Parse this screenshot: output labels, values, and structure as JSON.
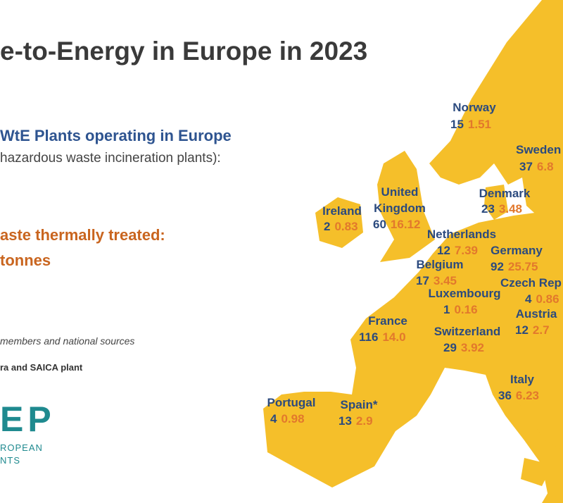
{
  "header": {
    "title": "e-to-Energy in Europe in 2023",
    "plants_heading": "WtE Plants operating in Europe",
    "plants_note": "hazardous waste incineration plants):",
    "waste_heading": "aste thermally treated:",
    "waste_unit": "tonnes",
    "source": "members and national sources",
    "footnote": "ra and SAICA plant"
  },
  "logo": {
    "mark": "EP",
    "line1": "ROPEAN",
    "line2": "NTS"
  },
  "countries": [
    {
      "name": "Norway",
      "plants": 15,
      "tonnes": 1.51
    },
    {
      "name": "Sweden",
      "plants": 37,
      "tonnes": 6.8
    },
    {
      "name": "Denmark",
      "plants": 23,
      "tonnes": 3.48
    },
    {
      "name": "Ireland",
      "plants": 2,
      "tonnes": 0.83
    },
    {
      "name": [
        "United",
        "Kingdom"
      ],
      "plants": 60,
      "tonnes": 16.12
    },
    {
      "name": "Netherlands",
      "plants": 12,
      "tonnes": 7.39
    },
    {
      "name": "Germany",
      "plants": 92,
      "tonnes": 25.75
    },
    {
      "name": "Belgium",
      "plants": 17,
      "tonnes": 3.45
    },
    {
      "name": "Czech Rep",
      "plants": 4,
      "tonnes": 0.86
    },
    {
      "name": "Luxembourg",
      "plants": 1,
      "tonnes": 0.16
    },
    {
      "name": "Austria",
      "plants": 12,
      "tonnes": 2.7
    },
    {
      "name": "France",
      "plants": 116,
      "tonnes": "14.0"
    },
    {
      "name": "Switzerland",
      "plants": 29,
      "tonnes": 3.92
    },
    {
      "name": "Italy",
      "plants": 36,
      "tonnes": 6.23
    },
    {
      "name": "Portugal",
      "plants": 4,
      "tonnes": 0.98
    },
    {
      "name": "Spain*",
      "plants": 13,
      "tonnes": 2.9
    }
  ]
}
